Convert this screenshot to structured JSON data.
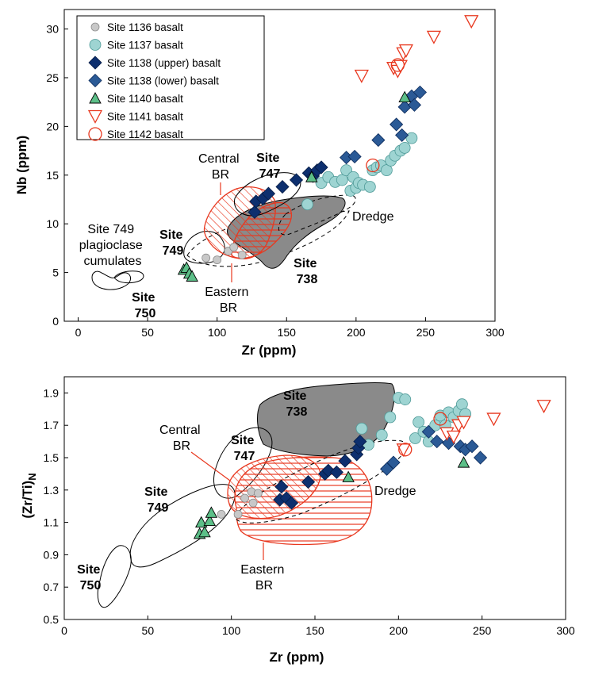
{
  "chart_data": [
    {
      "type": "scatter",
      "xlabel": "Zr (ppm)",
      "ylabel": "Nb (ppm)",
      "xlim": [
        -10,
        300
      ],
      "ylim": [
        0,
        32
      ],
      "xticks": [
        "0",
        "50",
        "100",
        "150",
        "200",
        "250",
        "300"
      ],
      "yticks": [
        "0",
        "5",
        "10",
        "15",
        "20",
        "25",
        "30"
      ],
      "legend": {
        "placement": "top-left",
        "entries": [
          "Site 1136 basalt",
          "Site 1137 basalt",
          "Site 1138 (upper) basalt",
          "Site 1138 (lower) basalt",
          "Site 1140 basalt",
          "Site 1141 basalt",
          "Site 1142 basalt"
        ]
      },
      "series": [
        {
          "name": "Site 1136 basalt",
          "marker": "circle-gray",
          "x": [
            92,
            100,
            108,
            112,
            118
          ],
          "y": [
            6.5,
            6.3,
            7.2,
            7.6,
            6.8
          ]
        },
        {
          "name": "Site 1137 basalt",
          "marker": "circle-teal",
          "x": [
            165,
            175,
            180,
            185,
            190,
            193,
            196,
            198,
            200,
            202,
            205,
            210,
            212,
            215,
            218,
            222,
            225,
            228,
            232,
            235,
            240
          ],
          "y": [
            12.0,
            14.2,
            14.8,
            14.3,
            14.5,
            15.5,
            13.4,
            14.8,
            13.7,
            14.2,
            14.0,
            13.8,
            15.5,
            15.8,
            16.0,
            15.5,
            16.5,
            17.0,
            17.5,
            17.8,
            18.8
          ]
        },
        {
          "name": "Site 1138 (upper) basalt",
          "marker": "diamond-navy",
          "x": [
            127,
            128,
            133,
            137,
            147,
            157,
            166,
            169,
            172,
            175
          ],
          "y": [
            11.2,
            12.3,
            12.6,
            13.1,
            13.8,
            14.5,
            15.2,
            14.9,
            15.5,
            15.8
          ]
        },
        {
          "name": "Site 1138 (lower) basalt",
          "marker": "diamond-blue",
          "x": [
            193,
            199,
            216,
            229,
            233,
            235,
            240,
            242,
            246
          ],
          "y": [
            16.8,
            16.9,
            18.6,
            20.2,
            19.1,
            22.0,
            23.1,
            22.2,
            23.5
          ]
        },
        {
          "name": "Site 1140 basalt",
          "marker": "triangle-green",
          "x": [
            76,
            78,
            80,
            82,
            168,
            235
          ],
          "y": [
            5.3,
            5.5,
            4.9,
            4.6,
            14.8,
            23.0
          ]
        },
        {
          "name": "Site 1141 basalt",
          "marker": "triangle-down-red",
          "x": [
            204,
            227,
            230,
            232,
            234,
            236,
            256,
            283
          ],
          "y": [
            25.2,
            26.0,
            25.7,
            26.2,
            27.5,
            27.8,
            29.2,
            30.8
          ]
        },
        {
          "name": "Site 1142 basalt",
          "marker": "circle-open-red",
          "x": [
            212,
            230
          ],
          "y": [
            16.0,
            26.3
          ]
        }
      ],
      "annotations": [
        {
          "text": "Site 749 plagioclase cumulates",
          "lines": [
            "Site 749",
            "plagioclase",
            "cumulates"
          ],
          "bold": false
        },
        {
          "text": "Site 749",
          "lines": [
            "Site",
            "749"
          ],
          "bold": true
        },
        {
          "text": "Site 750",
          "lines": [
            "Site",
            "750"
          ],
          "bold": true
        },
        {
          "text": "Central BR",
          "lines": [
            "Central",
            "BR"
          ],
          "bold": false
        },
        {
          "text": "Site 747",
          "lines": [
            "Site",
            "747"
          ],
          "bold": true
        },
        {
          "text": "Eastern BR",
          "lines": [
            "Eastern",
            "BR"
          ],
          "bold": false
        },
        {
          "text": "Site 738",
          "lines": [
            "Site",
            "738"
          ],
          "bold": true
        },
        {
          "text": "Dredge",
          "lines": [
            "Dredge"
          ],
          "bold": false
        }
      ]
    },
    {
      "type": "scatter",
      "xlabel": "Zr (ppm)",
      "ylabel": "(Zr/Ti)N",
      "xlim": [
        0,
        300
      ],
      "ylim": [
        0.5,
        2.0
      ],
      "xticks": [
        "0",
        "50",
        "100",
        "150",
        "200",
        "250",
        "300"
      ],
      "yticks": [
        "0.5",
        "0.7",
        "0.9",
        "1.1",
        "1.3",
        "1.5",
        "1.7",
        "1.9"
      ],
      "series": [
        {
          "name": "Site 1136 basalt",
          "marker": "circle-gray",
          "x": [
            94,
            104,
            108,
            112,
            113,
            116
          ],
          "y": [
            1.15,
            1.15,
            1.25,
            1.29,
            1.22,
            1.28
          ]
        },
        {
          "name": "Site 1137 basalt",
          "marker": "circle-teal",
          "x": [
            178,
            182,
            190,
            195,
            200,
            204,
            210,
            212,
            215,
            218,
            222,
            225,
            228,
            230,
            233,
            236,
            238,
            240
          ],
          "y": [
            1.68,
            1.58,
            1.64,
            1.75,
            1.87,
            1.86,
            1.62,
            1.72,
            1.66,
            1.6,
            1.7,
            1.76,
            1.7,
            1.78,
            1.75,
            1.79,
            1.83,
            1.77
          ]
        },
        {
          "name": "Site 1138 (upper) basalt",
          "marker": "diamond-navy",
          "x": [
            129,
            130,
            133,
            136,
            146,
            156,
            158,
            163,
            168,
            175,
            176,
            177
          ],
          "y": [
            1.24,
            1.32,
            1.25,
            1.22,
            1.35,
            1.4,
            1.42,
            1.41,
            1.48,
            1.52,
            1.56,
            1.6
          ]
        },
        {
          "name": "Site 1138 (lower) basalt",
          "marker": "diamond-blue",
          "x": [
            193,
            197,
            218,
            223,
            230,
            237,
            240,
            244,
            249
          ],
          "y": [
            1.43,
            1.47,
            1.66,
            1.6,
            1.59,
            1.57,
            1.55,
            1.57,
            1.5
          ]
        },
        {
          "name": "Site 1140 basalt",
          "marker": "triangle-green",
          "x": [
            81,
            82,
            84,
            87,
            88,
            170,
            239
          ],
          "y": [
            1.03,
            1.1,
            1.04,
            1.11,
            1.16,
            1.38,
            1.47
          ]
        },
        {
          "name": "Site 1141 basalt",
          "marker": "triangle-down-red",
          "x": [
            203,
            229,
            233,
            236,
            239,
            257,
            287
          ],
          "y": [
            1.55,
            1.65,
            1.63,
            1.7,
            1.72,
            1.74,
            1.82
          ]
        },
        {
          "name": "Site 1142 basalt",
          "marker": "circle-open-red",
          "x": [
            204,
            225
          ],
          "y": [
            1.55,
            1.74
          ]
        }
      ],
      "annotations": [
        {
          "text": "Site 738",
          "lines": [
            "Site",
            "738"
          ],
          "bold": true
        },
        {
          "text": "Central BR",
          "lines": [
            "Central",
            "BR"
          ],
          "bold": false
        },
        {
          "text": "Site 747",
          "lines": [
            "Site",
            "747"
          ],
          "bold": true
        },
        {
          "text": "Site 749",
          "lines": [
            "Site",
            "749"
          ],
          "bold": true
        },
        {
          "text": "Dredge",
          "lines": [
            "Dredge"
          ],
          "bold": false
        },
        {
          "text": "Eastern BR",
          "lines": [
            "Eastern",
            "BR"
          ],
          "bold": false
        },
        {
          "text": "Site 750",
          "lines": [
            "Site",
            "750"
          ],
          "bold": true
        }
      ]
    }
  ],
  "colors": {
    "gray_marker": "#c8c8c8",
    "teal_marker": "#9ed4d2",
    "navy_marker": "#0d2f6e",
    "blue_marker": "#2b5a96",
    "green_marker": "#5cbf88",
    "red": "#e8381f",
    "dark_field": "#8a8a8a"
  }
}
